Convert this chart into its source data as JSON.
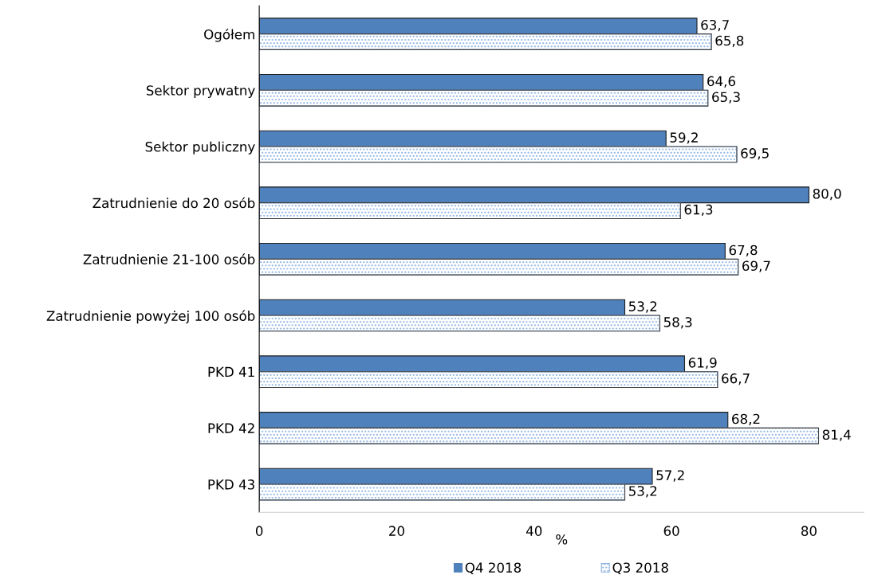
{
  "chart_data": {
    "type": "bar",
    "orientation": "horizontal",
    "xlabel": "%",
    "categories": [
      "Ogółem",
      "Sektor prywatny",
      "Sektor publiczny",
      "Zatrudnienie do 20 osób",
      "Zatrudnienie 21-100 osób",
      "Zatrudnienie powyżej 100 osób",
      "PKD 41",
      "PKD 42",
      "PKD 43"
    ],
    "series": [
      {
        "name": "Q4 2018",
        "color": "#4f81bd",
        "values": [
          63.7,
          64.6,
          59.2,
          80.0,
          67.8,
          53.2,
          61.9,
          68.2,
          57.2
        ],
        "value_labels": [
          "63,7",
          "64,6",
          "59,2",
          "80,0",
          "67,8",
          "53,2",
          "61,9",
          "68,2",
          "57,2"
        ]
      },
      {
        "name": "Q3 2018",
        "color": "#8eb4e3",
        "values": [
          65.8,
          65.3,
          69.5,
          61.3,
          69.7,
          58.3,
          66.7,
          81.4,
          53.2
        ],
        "value_labels": [
          "65,8",
          "65,3",
          "69,5",
          "61,3",
          "69,7",
          "58,3",
          "66,7",
          "81,4",
          "53,2"
        ]
      }
    ],
    "xlim": [
      0,
      88
    ],
    "xticks": [
      0,
      20,
      40,
      60,
      80
    ],
    "grid": false,
    "legend": "bottom"
  }
}
